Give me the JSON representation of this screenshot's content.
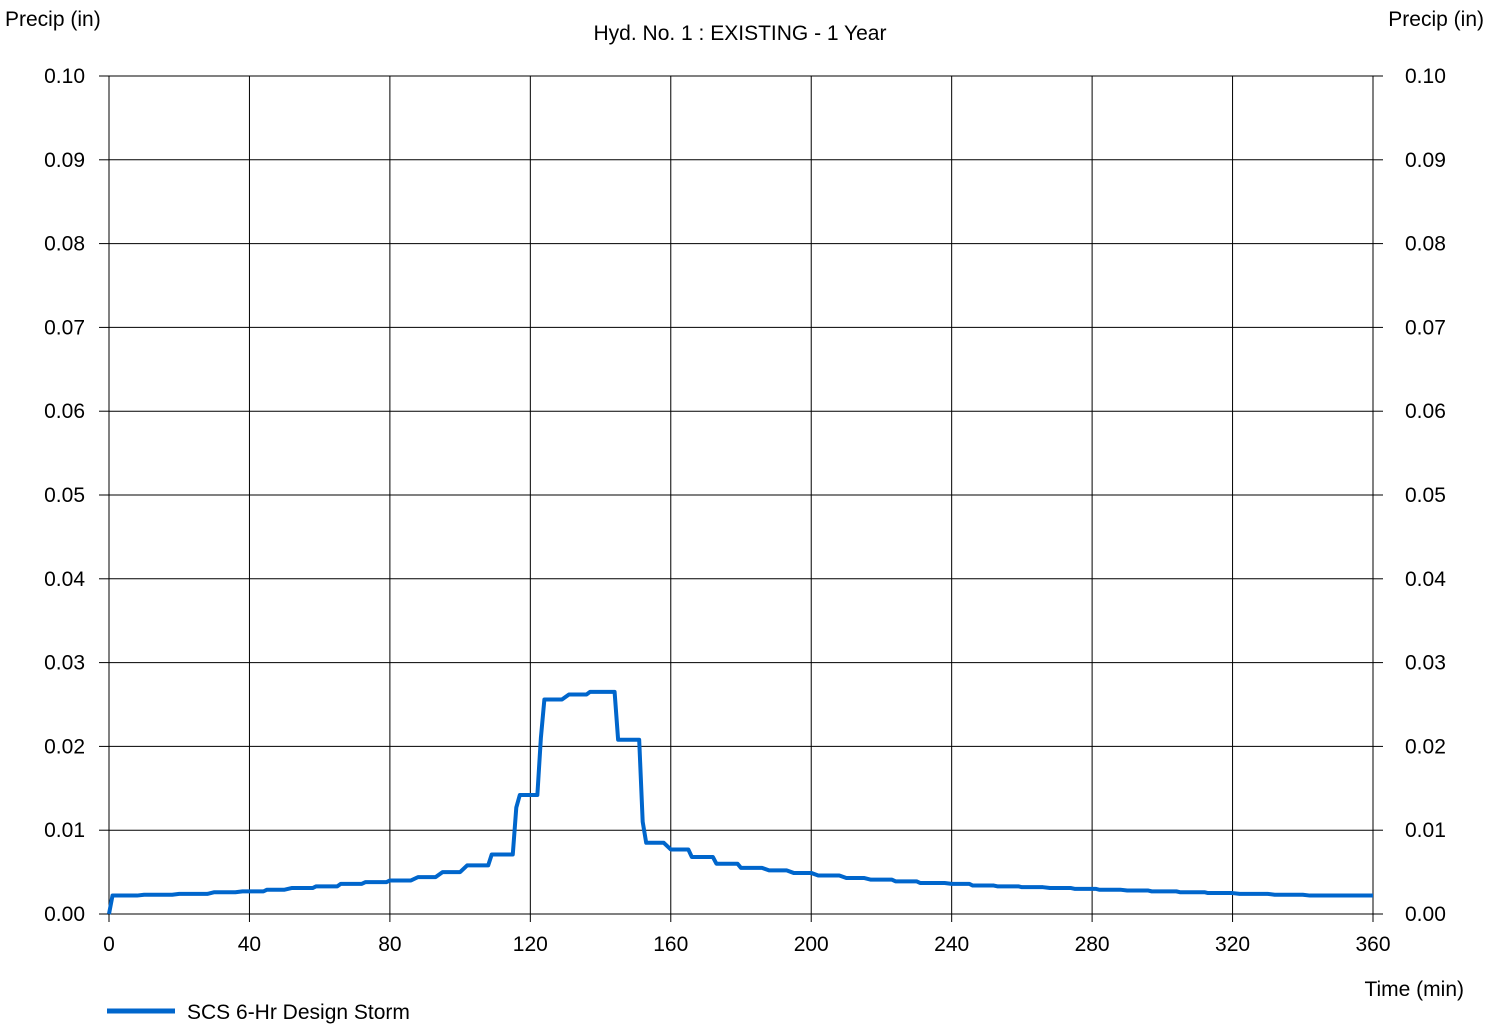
{
  "chart_data": {
    "type": "line",
    "title": "",
    "subtitle": "Hyd. No. 1 : EXISTING - 1 Year",
    "ylabel_left": "Precip (in)",
    "ylabel_right": "Precip (in)",
    "xlabel": "Time (min)",
    "xlim": [
      0,
      360
    ],
    "ylim": [
      0,
      0.1
    ],
    "xticks": [
      "0",
      "40",
      "80",
      "120",
      "160",
      "200",
      "240",
      "280",
      "320",
      "360"
    ],
    "yticks": [
      "0.00",
      "0.01",
      "0.02",
      "0.03",
      "0.04",
      "0.05",
      "0.06",
      "0.07",
      "0.08",
      "0.09",
      "0.10"
    ],
    "grid": true,
    "legend_position": "bottom-left",
    "series": [
      {
        "name": "SCS 6-Hr Design Storm",
        "color": "#0066cc",
        "points": [
          [
            0,
            0.0
          ],
          [
            1,
            0.0022
          ],
          [
            8,
            0.0022
          ],
          [
            10,
            0.0023
          ],
          [
            18,
            0.0023
          ],
          [
            20,
            0.0024
          ],
          [
            28,
            0.0024
          ],
          [
            30,
            0.0026
          ],
          [
            36,
            0.0026
          ],
          [
            38,
            0.0027
          ],
          [
            44,
            0.0027
          ],
          [
            45,
            0.0029
          ],
          [
            50,
            0.0029
          ],
          [
            52,
            0.0031
          ],
          [
            58,
            0.0031
          ],
          [
            59,
            0.0033
          ],
          [
            65,
            0.0033
          ],
          [
            66,
            0.0036
          ],
          [
            72,
            0.0036
          ],
          [
            73,
            0.0038
          ],
          [
            79,
            0.0038
          ],
          [
            80,
            0.004
          ],
          [
            86,
            0.004
          ],
          [
            88,
            0.0044
          ],
          [
            93,
            0.0044
          ],
          [
            95,
            0.005
          ],
          [
            100,
            0.005
          ],
          [
            102,
            0.0058
          ],
          [
            108,
            0.0058
          ],
          [
            109,
            0.0071
          ],
          [
            115,
            0.0071
          ],
          [
            116,
            0.0127
          ],
          [
            117,
            0.0142
          ],
          [
            122,
            0.0142
          ],
          [
            123,
            0.021
          ],
          [
            124,
            0.0256
          ],
          [
            129,
            0.0256
          ],
          [
            131,
            0.0262
          ],
          [
            136,
            0.0262
          ],
          [
            137,
            0.0265
          ],
          [
            144,
            0.0265
          ],
          [
            145,
            0.0208
          ],
          [
            151,
            0.0208
          ],
          [
            152,
            0.011
          ],
          [
            153,
            0.0085
          ],
          [
            158,
            0.0085
          ],
          [
            160,
            0.0077
          ],
          [
            165,
            0.0077
          ],
          [
            166,
            0.0068
          ],
          [
            172,
            0.0068
          ],
          [
            173,
            0.006
          ],
          [
            179,
            0.006
          ],
          [
            180,
            0.0055
          ],
          [
            186,
            0.0055
          ],
          [
            188,
            0.0052
          ],
          [
            193,
            0.0052
          ],
          [
            195,
            0.0049
          ],
          [
            200,
            0.0049
          ],
          [
            202,
            0.0046
          ],
          [
            208,
            0.0046
          ],
          [
            210,
            0.0043
          ],
          [
            215,
            0.0043
          ],
          [
            217,
            0.0041
          ],
          [
            223,
            0.0041
          ],
          [
            224,
            0.0039
          ],
          [
            230,
            0.0039
          ],
          [
            231,
            0.0037
          ],
          [
            238,
            0.0037
          ],
          [
            240,
            0.0036
          ],
          [
            245,
            0.0036
          ],
          [
            246,
            0.0034
          ],
          [
            252,
            0.0034
          ],
          [
            253,
            0.0033
          ],
          [
            259,
            0.0033
          ],
          [
            260,
            0.0032
          ],
          [
            266,
            0.0032
          ],
          [
            268,
            0.0031
          ],
          [
            274,
            0.0031
          ],
          [
            275,
            0.003
          ],
          [
            281,
            0.003
          ],
          [
            282,
            0.0029
          ],
          [
            288,
            0.0029
          ],
          [
            290,
            0.0028
          ],
          [
            296,
            0.0028
          ],
          [
            297,
            0.0027
          ],
          [
            304,
            0.0027
          ],
          [
            305,
            0.0026
          ],
          [
            312,
            0.0026
          ],
          [
            313,
            0.0025
          ],
          [
            320,
            0.0025
          ],
          [
            322,
            0.0024
          ],
          [
            330,
            0.0024
          ],
          [
            332,
            0.0023
          ],
          [
            340,
            0.0023
          ],
          [
            342,
            0.0022
          ],
          [
            360,
            0.0022
          ]
        ]
      }
    ]
  }
}
